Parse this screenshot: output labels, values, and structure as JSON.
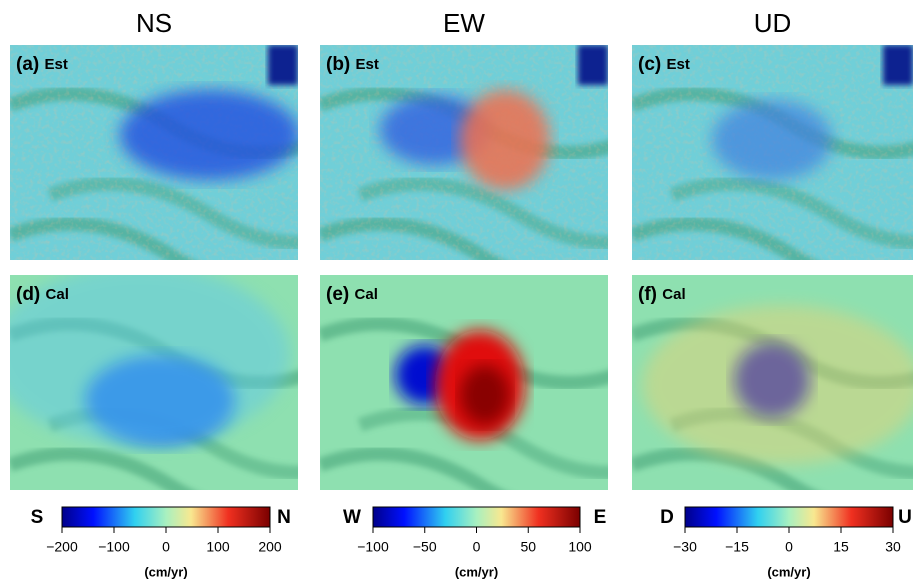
{
  "columns": [
    "NS",
    "EW",
    "UD"
  ],
  "panels": [
    {
      "label": "(a)",
      "tag": "Est"
    },
    {
      "label": "(b)",
      "tag": "Est"
    },
    {
      "label": "(c)",
      "tag": "Est"
    },
    {
      "label": "(d)",
      "tag": "Cal"
    },
    {
      "label": "(e)",
      "tag": "Cal"
    },
    {
      "label": "(f)",
      "tag": "Cal"
    }
  ],
  "colorbars": [
    {
      "low": "S",
      "high": "N",
      "lim": [
        -200,
        200
      ],
      "unit": "(cm/yr)",
      "ticks": [
        {
          "value": -200,
          "label": "−200"
        },
        {
          "value": -100,
          "label": "−100"
        },
        0,
        100,
        200
      ]
    },
    {
      "low": "W",
      "high": "E",
      "lim": [
        -100,
        100
      ],
      "unit": "(cm/yr)",
      "ticks": [
        {
          "value": -100,
          "label": "−100"
        },
        {
          "value": -50,
          "label": "−50"
        },
        0,
        50,
        100
      ]
    },
    {
      "low": "D",
      "high": "U",
      "lim": [
        -30,
        30
      ],
      "unit": "(cm/yr)",
      "ticks": [
        {
          "value": -30,
          "label": "−30"
        },
        {
          "value": -15,
          "label": "−15"
        },
        0,
        15,
        30
      ]
    }
  ]
}
